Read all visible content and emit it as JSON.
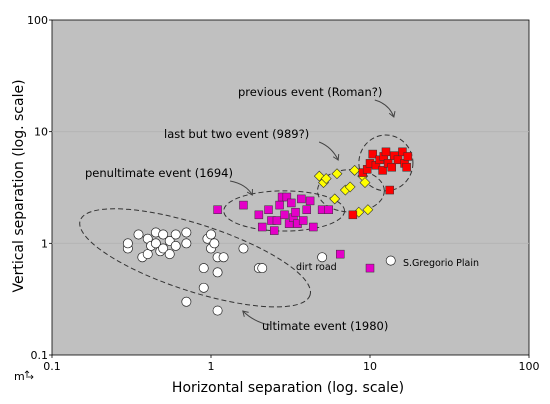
{
  "chart_data": {
    "type": "scatter",
    "title": "",
    "xlabel": "Horizontal separation (log. scale)",
    "ylabel": "Vertical separation (log. scale)",
    "axis_unit_label": "m",
    "xscale": "log",
    "yscale": "log",
    "xlim": [
      0.1,
      100
    ],
    "ylim": [
      0.1,
      100
    ],
    "x_ticks": [
      {
        "value": 0.1,
        "label": "0.1"
      },
      {
        "value": 1,
        "label": "1"
      },
      {
        "value": 10,
        "label": "10"
      },
      {
        "value": 100,
        "label": "100"
      }
    ],
    "y_ticks": [
      {
        "value": 0.1,
        "label": "0.1"
      },
      {
        "value": 1,
        "label": "1"
      },
      {
        "value": 10,
        "label": "10"
      },
      {
        "value": 100,
        "label": "100"
      }
    ],
    "grid": true,
    "plot_background": "#c0c0c0",
    "series": [
      {
        "group": "ultimate",
        "marker": "circle",
        "color": "#ffffff",
        "points": [
          [
            0.3,
            0.9
          ],
          [
            0.3,
            1.0
          ],
          [
            0.35,
            1.2
          ],
          [
            0.37,
            0.75
          ],
          [
            0.4,
            1.1
          ],
          [
            0.4,
            0.8
          ],
          [
            0.42,
            0.95
          ],
          [
            0.45,
            1.25
          ],
          [
            0.45,
            1.0
          ],
          [
            0.48,
            0.85
          ],
          [
            0.5,
            1.2
          ],
          [
            0.5,
            0.9
          ],
          [
            0.55,
            1.05
          ],
          [
            0.55,
            0.8
          ],
          [
            0.6,
            1.2
          ],
          [
            0.6,
            0.95
          ],
          [
            0.7,
            1.25
          ],
          [
            0.7,
            1.0
          ],
          [
            0.7,
            0.3
          ],
          [
            0.9,
            0.4
          ],
          [
            0.9,
            0.6
          ],
          [
            0.95,
            1.1
          ],
          [
            1.0,
            1.2
          ],
          [
            1.0,
            0.9
          ],
          [
            1.05,
            1.0
          ],
          [
            1.1,
            0.75
          ],
          [
            1.1,
            0.55
          ],
          [
            1.1,
            0.25
          ],
          [
            1.2,
            0.75
          ],
          [
            1.6,
            0.9
          ],
          [
            2.0,
            0.6
          ],
          [
            2.1,
            0.6
          ],
          [
            5.0,
            0.75
          ],
          [
            13.5,
            0.7
          ]
        ]
      },
      {
        "group": "penultimate",
        "marker": "square",
        "color": "#e400c8",
        "points": [
          [
            1.1,
            2.0
          ],
          [
            1.6,
            2.2
          ],
          [
            2.0,
            1.8
          ],
          [
            2.1,
            1.4
          ],
          [
            2.3,
            2.0
          ],
          [
            2.4,
            1.6
          ],
          [
            2.5,
            1.3
          ],
          [
            2.6,
            1.6
          ],
          [
            2.7,
            2.2
          ],
          [
            2.8,
            2.6
          ],
          [
            2.9,
            1.8
          ],
          [
            3.0,
            2.6
          ],
          [
            3.1,
            1.5
          ],
          [
            3.2,
            2.3
          ],
          [
            3.3,
            1.7
          ],
          [
            3.4,
            1.9
          ],
          [
            3.5,
            1.5
          ],
          [
            3.7,
            2.5
          ],
          [
            3.8,
            1.6
          ],
          [
            4.0,
            2.0
          ],
          [
            4.2,
            2.4
          ],
          [
            4.4,
            1.4
          ],
          [
            5.0,
            2.0
          ],
          [
            5.5,
            2.0
          ],
          [
            6.5,
            0.8
          ],
          [
            10.0,
            0.6
          ]
        ]
      },
      {
        "group": "last-but-two",
        "marker": "diamond",
        "color": "#ffff00",
        "points": [
          [
            4.8,
            4.0
          ],
          [
            5.1,
            3.5
          ],
          [
            5.3,
            3.8
          ],
          [
            6.0,
            2.5
          ],
          [
            6.2,
            4.2
          ],
          [
            7.0,
            3.0
          ],
          [
            7.5,
            3.2
          ],
          [
            8.0,
            4.5
          ],
          [
            8.5,
            1.9
          ],
          [
            9.0,
            4.0
          ],
          [
            9.3,
            3.5
          ],
          [
            9.7,
            2.0
          ]
        ]
      },
      {
        "group": "previous",
        "marker": "square",
        "color": "#ff0000",
        "points": [
          [
            7.8,
            1.8
          ],
          [
            9.0,
            4.3
          ],
          [
            9.6,
            4.6
          ],
          [
            10.0,
            5.2
          ],
          [
            10.4,
            6.3
          ],
          [
            10.9,
            5.0
          ],
          [
            11.5,
            5.6
          ],
          [
            12.0,
            4.5
          ],
          [
            12.2,
            6.0
          ],
          [
            12.6,
            6.6
          ],
          [
            13.0,
            5.2
          ],
          [
            13.3,
            3.0
          ],
          [
            13.7,
            4.8
          ],
          [
            14.2,
            6.1
          ],
          [
            15.0,
            5.6
          ],
          [
            16.0,
            6.6
          ],
          [
            16.5,
            5.2
          ],
          [
            17.0,
            4.8
          ],
          [
            17.3,
            6.0
          ]
        ]
      }
    ],
    "annotations": [
      {
        "text": "previous event (Roman?)",
        "group": "previous"
      },
      {
        "text": "last but two event (989?)",
        "group": "last-but-two"
      },
      {
        "text": "penultimate event (1694)",
        "group": "penultimate"
      },
      {
        "text": "ultimate event (1980)",
        "group": "ultimate"
      },
      {
        "text": "dirt road",
        "group": "place"
      },
      {
        "text": "S.Gregorio Plain",
        "group": "place"
      }
    ],
    "ellipses": [
      {
        "group": "ultimate",
        "cx_log": -0.1,
        "cy_log": -0.13,
        "rx_log": 0.76,
        "ry_log": 0.3,
        "rotate_deg": 18
      },
      {
        "group": "penultimate",
        "cx_log": 0.46,
        "cy_log": 0.29,
        "rx_log": 0.38,
        "ry_log": 0.18,
        "rotate_deg": 0
      },
      {
        "group": "last-but-two",
        "cx_log": 0.88,
        "cy_log": 0.47,
        "rx_log": 0.21,
        "ry_log": 0.19,
        "rotate_deg": 0
      },
      {
        "group": "previous",
        "cx_log": 1.1,
        "cy_log": 0.72,
        "rx_log": 0.17,
        "ry_log": 0.25,
        "rotate_deg": 0
      }
    ]
  }
}
